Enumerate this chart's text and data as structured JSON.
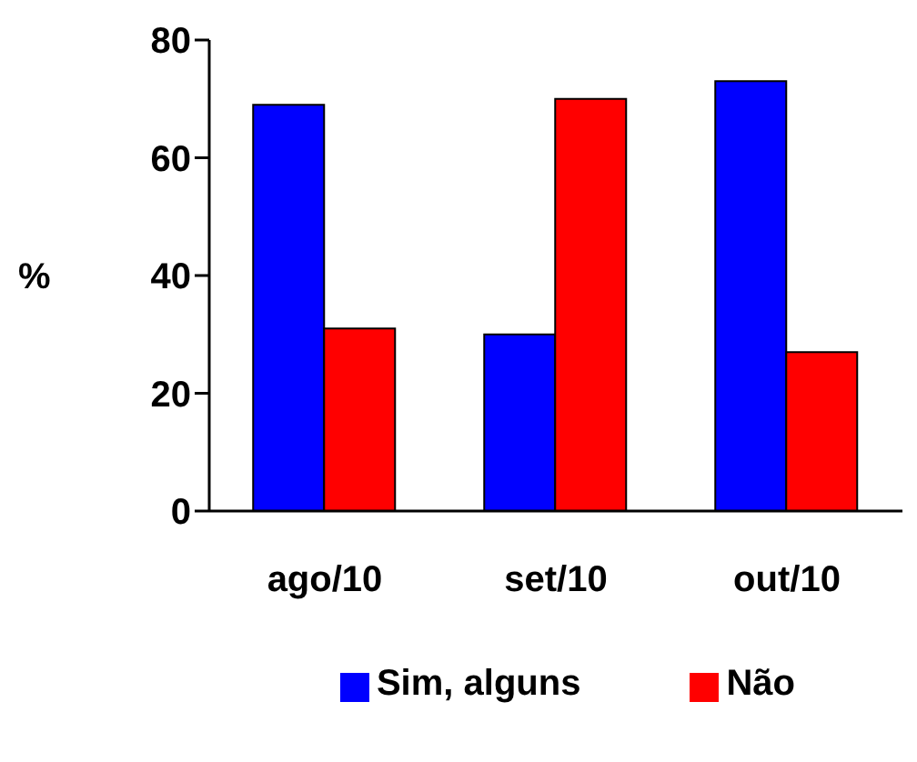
{
  "chart_data": {
    "type": "bar",
    "ylabel": "%",
    "categories": [
      "ago/10",
      "set/10",
      "out/10"
    ],
    "series": [
      {
        "name": "Sim, alguns",
        "color": "#0000ff",
        "values": [
          69,
          30,
          73
        ]
      },
      {
        "name": "Não",
        "color": "#ff0000",
        "values": [
          31,
          70,
          27
        ]
      }
    ],
    "ylim": [
      0,
      80
    ],
    "yticks": [
      0,
      20,
      40,
      60,
      80
    ],
    "grid": false,
    "legend": "bottom"
  }
}
